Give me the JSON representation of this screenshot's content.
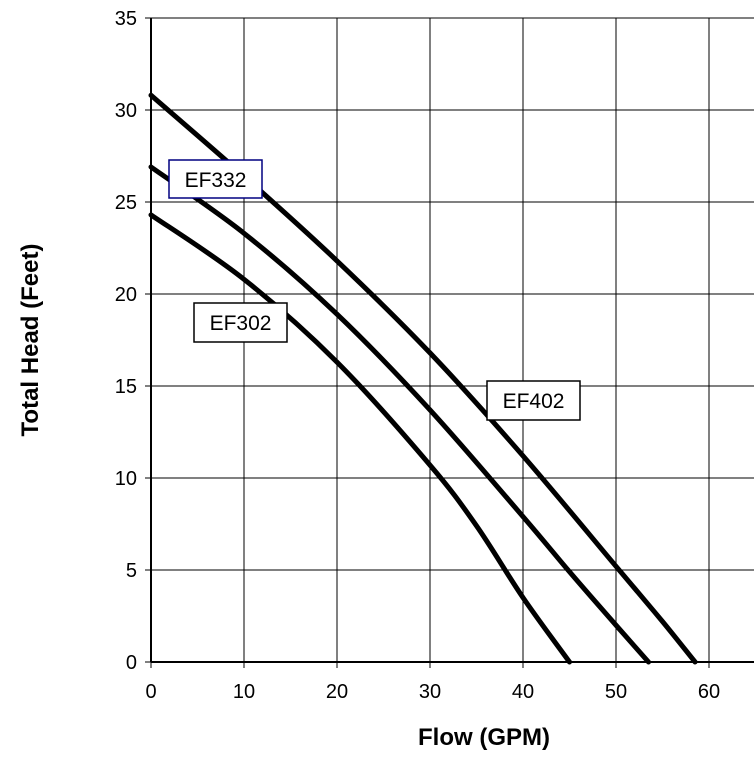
{
  "chart_data": {
    "type": "line",
    "xlabel": "Flow (GPM)",
    "ylabel": "Total Head (Feet)",
    "xlim": [
      0,
      65
    ],
    "ylim": [
      0,
      35
    ],
    "x_ticks": [
      0,
      10,
      20,
      30,
      40,
      50,
      60
    ],
    "y_ticks": [
      0,
      5,
      10,
      15,
      20,
      25,
      30,
      35
    ],
    "grid": true,
    "legend": "none",
    "series": [
      {
        "name": "EF402",
        "color": "#000000",
        "points": [
          [
            0,
            30.8
          ],
          [
            10,
            26.4
          ],
          [
            20,
            21.8
          ],
          [
            30,
            16.8
          ],
          [
            40,
            11.2
          ],
          [
            50,
            5.2
          ],
          [
            55,
            2.2
          ],
          [
            58.5,
            0
          ]
        ]
      },
      {
        "name": "EF332",
        "color": "#000000",
        "points": [
          [
            0,
            26.9
          ],
          [
            10,
            23.3
          ],
          [
            20,
            18.9
          ],
          [
            30,
            13.7
          ],
          [
            40,
            7.9
          ],
          [
            45,
            4.9
          ],
          [
            50,
            2.0
          ],
          [
            53.5,
            0
          ]
        ]
      },
      {
        "name": "EF302",
        "color": "#000000",
        "points": [
          [
            0,
            24.3
          ],
          [
            10,
            20.8
          ],
          [
            20,
            16.3
          ],
          [
            30,
            10.7
          ],
          [
            35,
            7.4
          ],
          [
            40,
            3.5
          ],
          [
            45,
            0
          ]
        ]
      }
    ],
    "annotations": [
      {
        "text": "EF332",
        "border_color": "#000080"
      },
      {
        "text": "EF302",
        "border_color": "#000000"
      },
      {
        "text": "EF402",
        "border_color": "#000000"
      }
    ]
  }
}
